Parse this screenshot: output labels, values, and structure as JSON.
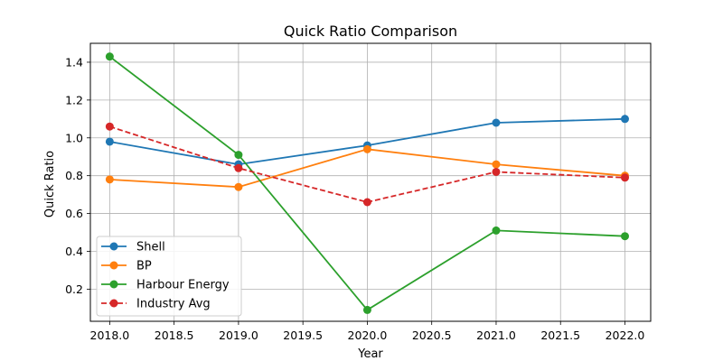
{
  "chart_data": {
    "type": "line",
    "title": "Quick Ratio Comparison",
    "xlabel": "Year",
    "ylabel": "Quick Ratio",
    "x": [
      2018,
      2019,
      2020,
      2021,
      2022
    ],
    "xlim": [
      2017.85,
      2022.2
    ],
    "ylim": [
      0.03,
      1.5
    ],
    "xticks": [
      2018.0,
      2018.5,
      2019.0,
      2019.5,
      2020.0,
      2020.5,
      2021.0,
      2021.5,
      2022.0
    ],
    "xtick_labels": [
      "2018.0",
      "2018.5",
      "2019.0",
      "2019.5",
      "2020.0",
      "2020.5",
      "2021.0",
      "2021.5",
      "2022.0"
    ],
    "yticks": [
      0.2,
      0.4,
      0.6,
      0.8,
      1.0,
      1.2,
      1.4
    ],
    "ytick_labels": [
      "0.2",
      "0.4",
      "0.6",
      "0.8",
      "1.0",
      "1.2",
      "1.4"
    ],
    "grid": true,
    "legend_position": "lower-left",
    "series": [
      {
        "name": "Shell",
        "color": "#1f77b4",
        "dashed": false,
        "values": [
          0.98,
          0.86,
          0.96,
          1.08,
          1.1
        ]
      },
      {
        "name": "BP",
        "color": "#ff7f0e",
        "dashed": false,
        "values": [
          0.78,
          0.74,
          0.94,
          0.86,
          0.8
        ]
      },
      {
        "name": "Harbour Energy",
        "color": "#2ca02c",
        "dashed": false,
        "values": [
          1.43,
          0.91,
          0.09,
          0.51,
          0.48
        ]
      },
      {
        "name": "Industry Avg",
        "color": "#d62728",
        "dashed": true,
        "values": [
          1.06,
          0.84,
          0.66,
          0.82,
          0.79
        ]
      }
    ]
  }
}
